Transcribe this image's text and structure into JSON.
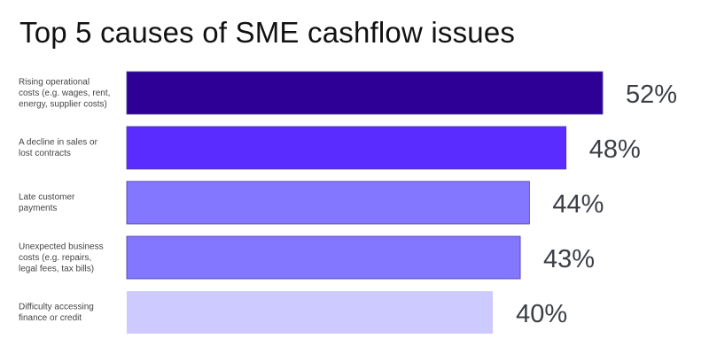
{
  "chart_data": {
    "type": "bar",
    "orientation": "horizontal",
    "title": "Top 5 causes of SME cashflow issues",
    "categories": [
      [
        "Rising operational",
        "costs (e.g. wages, rent,",
        "energy, supplier costs)"
      ],
      [
        "A decline in sales or",
        "lost contracts"
      ],
      [
        "Late customer",
        "payments"
      ],
      [
        "Unexpected business",
        "costs (e.g. repairs,",
        "legal fees, tax bills)"
      ],
      [
        "Difficulty accessing",
        "finance or credit"
      ]
    ],
    "values": [
      52,
      48,
      44,
      43,
      40
    ],
    "value_labels": [
      "52%",
      "48%",
      "44%",
      "43%",
      "40%"
    ],
    "bar_colors": [
      "#2e0096",
      "#5a2cff",
      "#8376ff",
      "#8376ff",
      "#cdcaff"
    ],
    "bar_border_color": "#4a3aa0",
    "xlim": [
      0,
      52
    ],
    "grid": false,
    "legend": "none"
  }
}
